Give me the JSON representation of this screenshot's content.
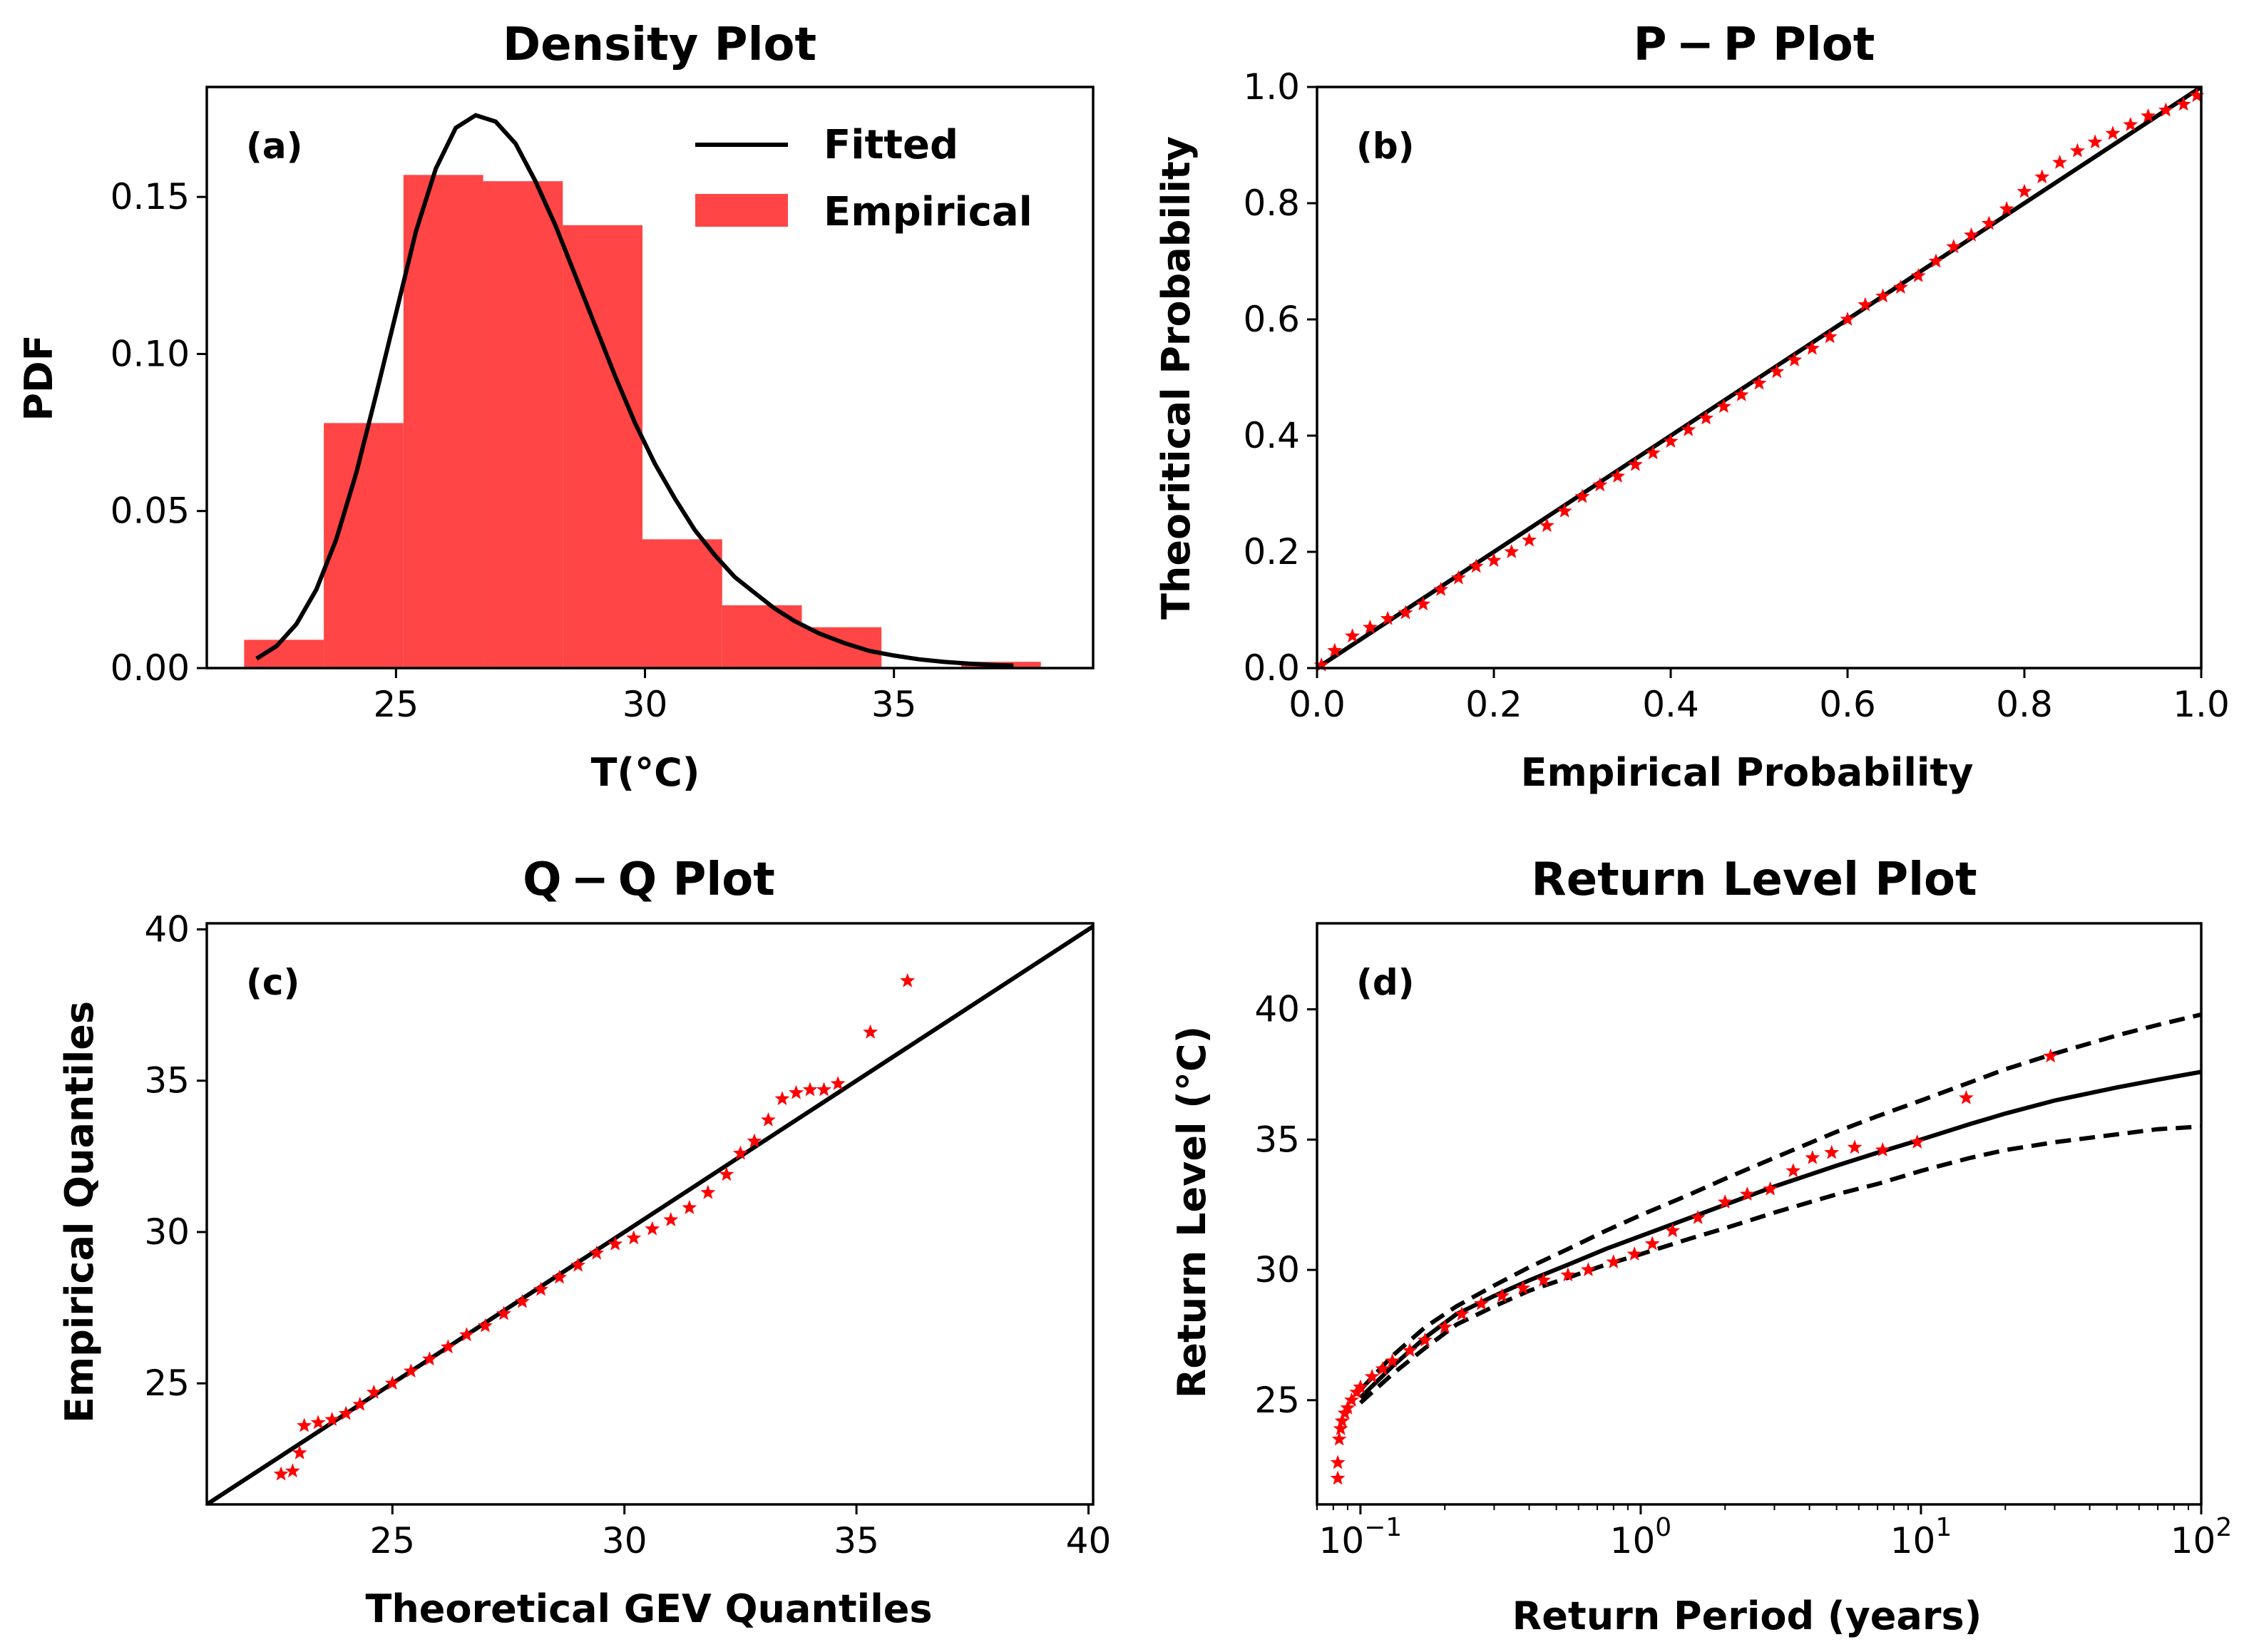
{
  "colors": {
    "empirical": "#ff4545",
    "marker": "#ff0000",
    "line": "#000000"
  },
  "chart_data": [
    {
      "type": "bar",
      "panel": "(a)",
      "title": "Density Plot",
      "xlabel": "T(°C)",
      "ylabel": "PDF",
      "xlim": [
        21.2,
        39.0
      ],
      "ylim": [
        0,
        0.185
      ],
      "xticks": [
        {
          "v": 25,
          "label": "25"
        },
        {
          "v": 30,
          "label": "30"
        },
        {
          "v": 35,
          "label": "35"
        }
      ],
      "yticks": [
        {
          "v": 0,
          "label": "0.00"
        },
        {
          "v": 0.05,
          "label": "0.05"
        },
        {
          "v": 0.1,
          "label": "0.10"
        },
        {
          "v": 0.15,
          "label": "0.15"
        }
      ],
      "bins": [
        {
          "x0": 21.95,
          "x1": 23.55,
          "y": 0.009
        },
        {
          "x0": 23.55,
          "x1": 25.15,
          "y": 0.078
        },
        {
          "x0": 25.15,
          "x1": 26.75,
          "y": 0.157
        },
        {
          "x0": 26.75,
          "x1": 28.35,
          "y": 0.155
        },
        {
          "x0": 28.35,
          "x1": 29.95,
          "y": 0.141
        },
        {
          "x0": 29.95,
          "x1": 31.55,
          "y": 0.041
        },
        {
          "x0": 31.55,
          "x1": 33.15,
          "y": 0.02
        },
        {
          "x0": 33.15,
          "x1": 34.75,
          "y": 0.013
        },
        {
          "x0": 34.75,
          "x1": 36.35,
          "y": 0.0
        },
        {
          "x0": 36.35,
          "x1": 37.95,
          "y": 0.002
        }
      ],
      "fitted": {
        "x": [
          22.2,
          22.6,
          23.0,
          23.4,
          23.8,
          24.2,
          24.6,
          25.0,
          25.4,
          25.8,
          26.2,
          26.6,
          27.0,
          27.4,
          27.8,
          28.2,
          28.6,
          29.0,
          29.4,
          29.8,
          30.2,
          30.6,
          31.0,
          31.4,
          31.8,
          32.2,
          32.6,
          33.0,
          33.5,
          34.0,
          34.5,
          35.0,
          35.5,
          36.0,
          36.5,
          37.0,
          37.4
        ],
        "y": [
          0.003,
          0.007,
          0.014,
          0.025,
          0.041,
          0.062,
          0.087,
          0.113,
          0.139,
          0.159,
          0.172,
          0.176,
          0.174,
          0.167,
          0.155,
          0.141,
          0.125,
          0.109,
          0.093,
          0.078,
          0.065,
          0.054,
          0.044,
          0.036,
          0.029,
          0.024,
          0.019,
          0.015,
          0.011,
          0.008,
          0.0055,
          0.004,
          0.0028,
          0.002,
          0.0014,
          0.001,
          0.0008
        ]
      },
      "legend": {
        "placement": "top-right",
        "fitted": "Fitted",
        "empirical": "Empirical"
      }
    },
    {
      "type": "scatter",
      "panel": "(b)",
      "title": "P − P  Plot",
      "xlabel": "Empirical Probability",
      "ylabel": "Theoritical Probability",
      "xlim": [
        0,
        1
      ],
      "ylim": [
        0,
        1
      ],
      "xticks": [
        {
          "v": 0,
          "label": "0.0"
        },
        {
          "v": 0.2,
          "label": "0.2"
        },
        {
          "v": 0.4,
          "label": "0.4"
        },
        {
          "v": 0.6,
          "label": "0.6"
        },
        {
          "v": 0.8,
          "label": "0.8"
        },
        {
          "v": 1.0,
          "label": "1.0"
        }
      ],
      "yticks": [
        {
          "v": 0,
          "label": "0.0"
        },
        {
          "v": 0.2,
          "label": "0.2"
        },
        {
          "v": 0.4,
          "label": "0.4"
        },
        {
          "v": 0.6,
          "label": "0.6"
        },
        {
          "v": 0.8,
          "label": "0.8"
        },
        {
          "v": 1.0,
          "label": "1.0"
        }
      ],
      "reference_line": [
        [
          0,
          0
        ],
        [
          1,
          1
        ]
      ],
      "points": {
        "x": [
          0.005,
          0.02,
          0.04,
          0.06,
          0.08,
          0.1,
          0.12,
          0.14,
          0.16,
          0.18,
          0.2,
          0.22,
          0.24,
          0.26,
          0.28,
          0.3,
          0.32,
          0.34,
          0.36,
          0.38,
          0.4,
          0.42,
          0.44,
          0.46,
          0.48,
          0.5,
          0.52,
          0.54,
          0.56,
          0.58,
          0.6,
          0.62,
          0.64,
          0.66,
          0.68,
          0.7,
          0.72,
          0.74,
          0.76,
          0.78,
          0.8,
          0.82,
          0.84,
          0.86,
          0.88,
          0.9,
          0.92,
          0.94,
          0.96,
          0.98,
          0.995
        ],
        "y": [
          0.005,
          0.03,
          0.055,
          0.07,
          0.085,
          0.095,
          0.11,
          0.135,
          0.155,
          0.175,
          0.185,
          0.2,
          0.22,
          0.245,
          0.27,
          0.295,
          0.315,
          0.33,
          0.35,
          0.37,
          0.39,
          0.41,
          0.43,
          0.45,
          0.47,
          0.49,
          0.51,
          0.53,
          0.55,
          0.57,
          0.6,
          0.625,
          0.64,
          0.655,
          0.675,
          0.7,
          0.725,
          0.745,
          0.765,
          0.79,
          0.82,
          0.845,
          0.87,
          0.89,
          0.905,
          0.92,
          0.935,
          0.95,
          0.96,
          0.97,
          0.985
        ]
      }
    },
    {
      "type": "scatter",
      "panel": "(c)",
      "title": "Q − Q  Plot",
      "xlabel": "Theoretical GEV Quantiles",
      "ylabel": "Empirical Quantiles",
      "xlim": [
        21,
        40.1
      ],
      "ylim": [
        21,
        40.2
      ],
      "xticks": [
        {
          "v": 25,
          "label": "25"
        },
        {
          "v": 30,
          "label": "30"
        },
        {
          "v": 35,
          "label": "35"
        },
        {
          "v": 40,
          "label": "40"
        }
      ],
      "yticks": [
        {
          "v": 25,
          "label": "25"
        },
        {
          "v": 30,
          "label": "30"
        },
        {
          "v": 35,
          "label": "35"
        },
        {
          "v": 40,
          "label": "40"
        }
      ],
      "reference_line": [
        [
          21,
          21
        ],
        [
          40.1,
          40.1
        ]
      ],
      "points": {
        "x": [
          22.6,
          22.85,
          23.0,
          23.1,
          23.4,
          23.7,
          24.0,
          24.3,
          24.6,
          25.0,
          25.4,
          25.8,
          26.2,
          26.6,
          27.0,
          27.4,
          27.8,
          28.2,
          28.6,
          29.0,
          29.4,
          29.8,
          30.2,
          30.6,
          31.0,
          31.4,
          31.8,
          32.2,
          32.5,
          32.8,
          33.1,
          33.4,
          33.7,
          34.0,
          34.3,
          34.6,
          35.3,
          36.1
        ],
        "y": [
          22.0,
          22.1,
          22.7,
          23.6,
          23.7,
          23.8,
          24.0,
          24.3,
          24.7,
          25.0,
          25.4,
          25.8,
          26.2,
          26.6,
          26.9,
          27.3,
          27.7,
          28.1,
          28.5,
          28.9,
          29.3,
          29.6,
          29.8,
          30.1,
          30.4,
          30.8,
          31.3,
          31.9,
          32.6,
          33.0,
          33.7,
          34.4,
          34.6,
          34.7,
          34.7,
          34.9,
          36.6,
          38.3
        ]
      }
    },
    {
      "type": "line",
      "panel": "(d)",
      "title": "Return Level Plot",
      "xlabel": "Return Period (years)",
      "ylabel": "Return Level (°C)",
      "xscale": "log",
      "xlim": [
        0.07,
        100
      ],
      "ylim": [
        21,
        43.3
      ],
      "xticks": [
        {
          "v": 0.1,
          "base": "10",
          "exp": "−1"
        },
        {
          "v": 1,
          "base": "10",
          "exp": "0"
        },
        {
          "v": 10,
          "base": "10",
          "exp": "1"
        },
        {
          "v": 100,
          "base": "10",
          "exp": "2"
        }
      ],
      "yticks": [
        {
          "v": 25,
          "label": "25"
        },
        {
          "v": 30,
          "label": "30"
        },
        {
          "v": 35,
          "label": "35"
        },
        {
          "v": 40,
          "label": "40"
        }
      ],
      "series": [
        {
          "style": "solid",
          "x": [
            0.1,
            0.13,
            0.17,
            0.22,
            0.3,
            0.4,
            0.55,
            0.75,
            1,
            1.5,
            2,
            3,
            5,
            7,
            10,
            15,
            20,
            30,
            50,
            70,
            100
          ],
          "y": [
            25.1,
            26.3,
            27.4,
            28.3,
            29.0,
            29.6,
            30.2,
            30.8,
            31.3,
            32.0,
            32.5,
            33.2,
            34.0,
            34.5,
            35.0,
            35.6,
            36.0,
            36.5,
            37.0,
            37.3,
            37.6
          ]
        },
        {
          "style": "dashed",
          "x": [
            0.1,
            0.13,
            0.17,
            0.22,
            0.3,
            0.4,
            0.55,
            0.75,
            1,
            1.5,
            2,
            3,
            5,
            7,
            10,
            15,
            20,
            30,
            50,
            70,
            100
          ],
          "y": [
            25.4,
            26.7,
            27.8,
            28.6,
            29.4,
            30.1,
            30.8,
            31.5,
            32.1,
            32.9,
            33.5,
            34.3,
            35.3,
            35.9,
            36.5,
            37.2,
            37.7,
            38.3,
            39.0,
            39.4,
            39.8
          ]
        },
        {
          "style": "dashed",
          "x": [
            0.1,
            0.13,
            0.17,
            0.22,
            0.3,
            0.4,
            0.55,
            0.75,
            1,
            1.5,
            2,
            3,
            5,
            7,
            10,
            15,
            20,
            30,
            50,
            70,
            100
          ],
          "y": [
            24.9,
            26.0,
            27.0,
            27.9,
            28.6,
            29.2,
            29.7,
            30.2,
            30.6,
            31.2,
            31.6,
            32.2,
            32.9,
            33.3,
            33.8,
            34.3,
            34.6,
            34.9,
            35.2,
            35.4,
            35.5
          ]
        }
      ],
      "points": {
        "x": [
          0.083,
          0.083,
          0.084,
          0.085,
          0.086,
          0.088,
          0.09,
          0.093,
          0.097,
          0.1,
          0.11,
          0.12,
          0.13,
          0.15,
          0.17,
          0.2,
          0.23,
          0.27,
          0.32,
          0.38,
          0.45,
          0.55,
          0.65,
          0.8,
          0.95,
          1.1,
          1.3,
          1.6,
          2.0,
          2.4,
          2.9,
          3.5,
          4.1,
          4.8,
          5.8,
          7.3,
          9.7,
          14.5,
          29
        ],
        "y": [
          22.0,
          22.6,
          23.5,
          23.9,
          24.2,
          24.5,
          24.7,
          25.0,
          25.3,
          25.5,
          25.9,
          26.2,
          26.5,
          26.9,
          27.3,
          27.8,
          28.3,
          28.7,
          29.0,
          29.3,
          29.6,
          29.8,
          30.0,
          30.3,
          30.6,
          31.0,
          31.5,
          32.0,
          32.6,
          32.9,
          33.1,
          33.8,
          34.3,
          34.5,
          34.7,
          34.6,
          34.9,
          36.6,
          38.2
        ]
      }
    }
  ]
}
